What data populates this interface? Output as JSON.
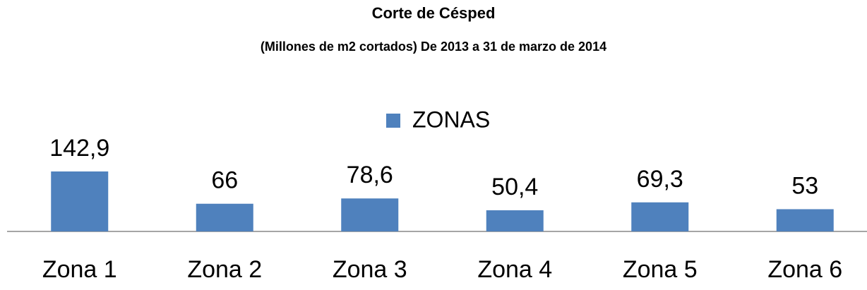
{
  "chart_data": {
    "type": "bar",
    "title": "Corte de Césped",
    "subtitle": "(Millones de m2 cortados) De 2013 a 31 de marzo  de 2014",
    "categories": [
      "Zona 1",
      "Zona 2",
      "Zona 3",
      "Zona 4",
      "Zona 5",
      "Zona 6"
    ],
    "series": [
      {
        "name": "ZONAS",
        "color": "#4f81bd",
        "values": [
          142.9,
          66,
          78.6,
          50.4,
          69.3,
          53
        ],
        "value_labels": [
          "142,9",
          "66",
          "78,6",
          "50,4",
          "69,3",
          "53"
        ]
      }
    ],
    "legend": "top"
  }
}
